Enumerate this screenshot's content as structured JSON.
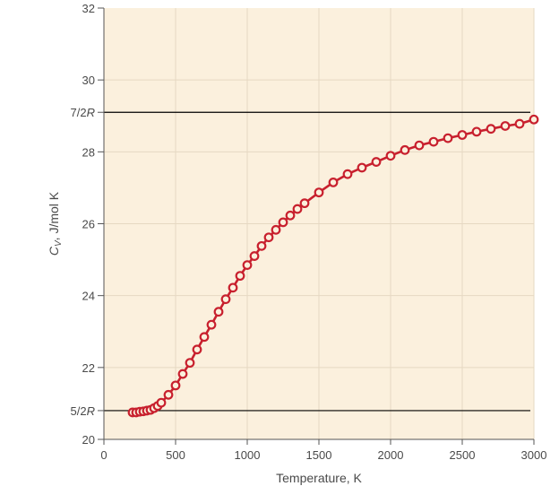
{
  "chart_data": {
    "type": "line",
    "xlabel": "Temperature, K",
    "ylabel": "C_V, J/mol K",
    "ylabel_parts": {
      "main": "C",
      "sub": "V",
      "rest": ", J/mol K"
    },
    "xlim": [
      0,
      3000
    ],
    "ylim": [
      20,
      32
    ],
    "x_ticks": [
      "0",
      "500",
      "1000",
      "1500",
      "2000",
      "2500",
      "3000"
    ],
    "y_ticks": [
      "20",
      "22",
      "24",
      "26",
      "28",
      "30",
      "32"
    ],
    "grid": true,
    "colors": {
      "plot_bg": "#fbf0dd",
      "grid": "#e6d8c2",
      "line": "#c8202e",
      "marker_stroke": "#c8202e",
      "ref_line": "#000000"
    },
    "reference_lines": [
      {
        "y": 29.1,
        "label": "7/2R"
      },
      {
        "y": 20.8,
        "label": "5/2R"
      }
    ],
    "series": [
      {
        "marker": "circle",
        "x": [
          200,
          225,
          250,
          275,
          300,
          325,
          350,
          375,
          400,
          450,
          500,
          550,
          600,
          650,
          700,
          750,
          800,
          850,
          900,
          950,
          1000,
          1050,
          1100,
          1150,
          1200,
          1250,
          1300,
          1350,
          1400,
          1500,
          1600,
          1700,
          1800,
          1900,
          2000,
          2100,
          2200,
          2300,
          2400,
          2500,
          2600,
          2700,
          2800,
          2900,
          3000
        ],
        "y": [
          20.75,
          20.75,
          20.77,
          20.78,
          20.8,
          20.82,
          20.87,
          20.93,
          21.02,
          21.24,
          21.5,
          21.82,
          22.13,
          22.5,
          22.85,
          23.19,
          23.55,
          23.9,
          24.22,
          24.55,
          24.85,
          25.1,
          25.38,
          25.62,
          25.83,
          26.04,
          26.23,
          26.41,
          26.57,
          26.87,
          27.15,
          27.38,
          27.56,
          27.72,
          27.89,
          28.05,
          28.18,
          28.28,
          28.38,
          28.47,
          28.56,
          28.64,
          28.72,
          28.78,
          28.9
        ]
      }
    ]
  }
}
